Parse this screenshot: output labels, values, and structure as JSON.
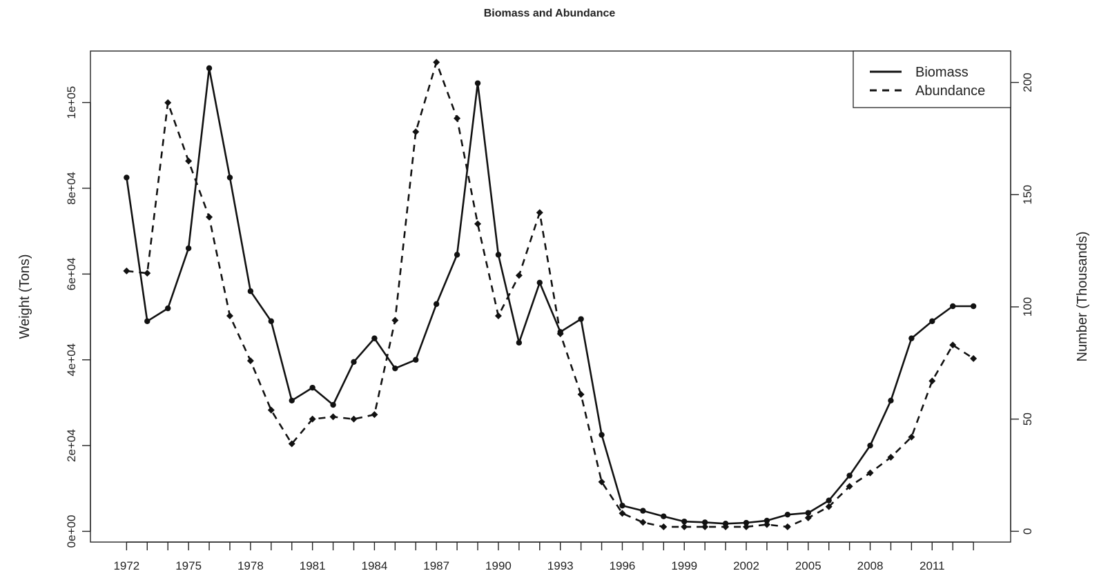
{
  "chart_data": {
    "type": "line",
    "title": "Biomass and Abundance",
    "xlabel": "",
    "ylabel": "Weight (Tons)",
    "ylabel_right": "Number (Thousands)",
    "x": [
      1972,
      1973,
      1974,
      1975,
      1976,
      1977,
      1978,
      1979,
      1980,
      1981,
      1982,
      1983,
      1984,
      1985,
      1986,
      1987,
      1988,
      1989,
      1990,
      1991,
      1992,
      1993,
      1994,
      1995,
      1996,
      1997,
      1998,
      1999,
      2000,
      2001,
      2002,
      2003,
      2004,
      2005,
      2006,
      2007,
      2008,
      2009,
      2010,
      2011,
      2012,
      2013
    ],
    "xticks": [
      1972,
      1975,
      1978,
      1981,
      1984,
      1987,
      1990,
      1993,
      1996,
      1999,
      2002,
      2005,
      2008,
      2011
    ],
    "xticks_labels": [
      "1972",
      "1975",
      "1978",
      "1981",
      "1984",
      "1987",
      "1990",
      "1993",
      "1996",
      "1999",
      "2002",
      "2005",
      "2008",
      "2011"
    ],
    "ylim": [
      -2500,
      112000
    ],
    "yticks": [
      0,
      20000,
      40000,
      60000,
      80000,
      100000
    ],
    "yticks_labels": [
      "0e+00",
      "2e+04",
      "4e+04",
      "6e+04",
      "8e+04",
      "1e+05"
    ],
    "ylim_right": [
      -4800,
      214000
    ],
    "yticks_right": [
      0,
      50,
      100,
      150,
      200
    ],
    "yticks_right_labels": [
      "0",
      "50",
      "100",
      "150",
      "200"
    ],
    "grid": false,
    "legend_position": "top-right",
    "series": [
      {
        "name": "Biomass",
        "axis": "left",
        "line_style": "solid",
        "marker": "circle",
        "color": "#111111",
        "values": [
          82500,
          49000,
          52000,
          66000,
          108000,
          82500,
          56000,
          49000,
          30500,
          33500,
          29500,
          39500,
          45000,
          38000,
          40000,
          53000,
          64500,
          104500,
          64500,
          44000,
          58000,
          46500,
          49500,
          22500,
          6000,
          4800,
          3500,
          2300,
          2100,
          1800,
          2000,
          2500,
          3900,
          4300,
          7200,
          13000,
          20000,
          30500,
          45000,
          49000,
          52500,
          52500
        ]
      },
      {
        "name": "Abundance",
        "axis": "right",
        "line_style": "dashed",
        "marker": "diamond",
        "color": "#111111",
        "values": [
          116,
          115,
          191,
          165,
          140,
          96,
          76,
          54,
          39,
          50,
          51,
          50,
          52,
          94,
          178,
          209,
          184,
          137,
          96,
          114,
          142,
          88,
          61,
          22,
          8,
          4,
          2,
          2,
          2,
          2,
          2,
          3,
          2,
          6,
          11,
          20,
          26,
          33,
          42,
          67,
          83,
          77
        ]
      }
    ]
  }
}
